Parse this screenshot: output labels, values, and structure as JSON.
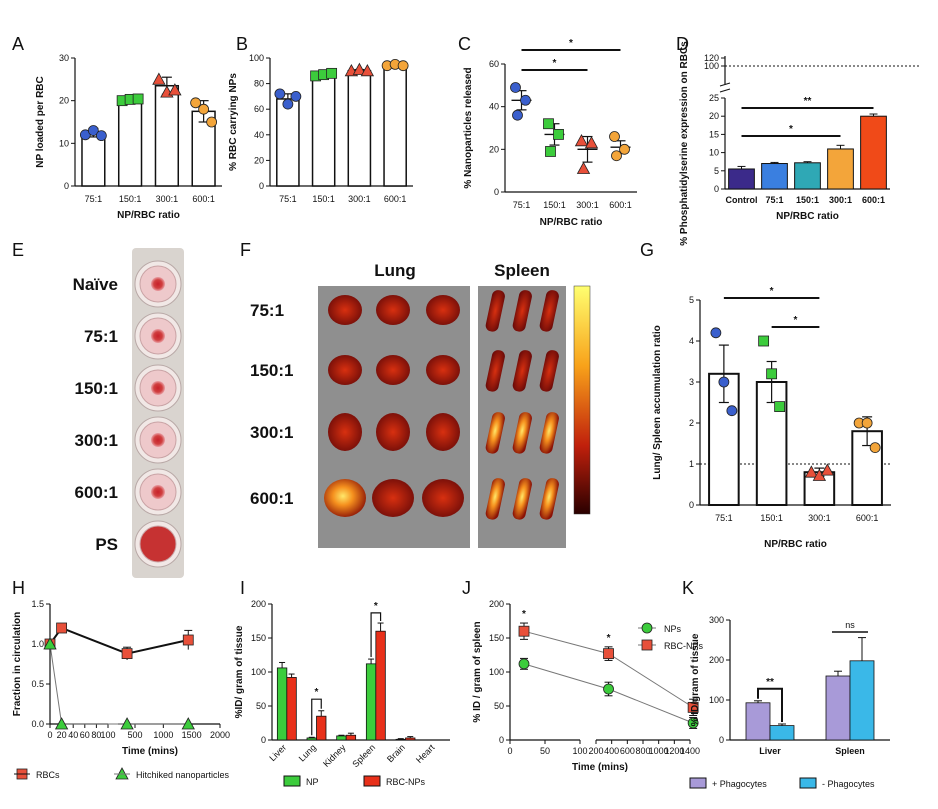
{
  "chart_data": [
    {
      "panel": "A",
      "type": "bar",
      "categories": [
        "75:1",
        "150:1",
        "300:1",
        "600:1"
      ],
      "values": [
        12.5,
        20.2,
        23.5,
        17.5
      ],
      "errors": [
        1.0,
        0.3,
        2.0,
        2.5
      ],
      "points": [
        [
          12,
          13,
          11.8
        ],
        [
          20,
          20.3,
          20.4
        ],
        [
          25,
          22,
          22.5
        ],
        [
          19.5,
          18,
          15
        ]
      ],
      "point_colors": [
        "#3a5fcd",
        "#3ccc3c",
        "#e8503a",
        "#f3a53a"
      ],
      "point_shapes": [
        "circle",
        "square",
        "triangle",
        "circle"
      ],
      "xlabel": "NP/RBC ratio",
      "ylabel": "NP loaded per RBC",
      "ylim": [
        0,
        30
      ],
      "yticks": [
        "0",
        "10",
        "20",
        "30"
      ]
    },
    {
      "panel": "B",
      "type": "bar",
      "categories": [
        "75:1",
        "150:1",
        "300:1",
        "600:1"
      ],
      "values": [
        68,
        86,
        90,
        94
      ],
      "errors": [
        4,
        1.5,
        1,
        0.8
      ],
      "points": [
        [
          72,
          64,
          70
        ],
        [
          86,
          87,
          88
        ],
        [
          90,
          91,
          90
        ],
        [
          94,
          95,
          94
        ]
      ],
      "point_colors": [
        "#3a5fcd",
        "#3ccc3c",
        "#e8503a",
        "#f3a53a"
      ],
      "point_shapes": [
        "circle",
        "square",
        "triangle",
        "circle"
      ],
      "xlabel": "",
      "ylabel": "% RBC carrying NPs",
      "ylim": [
        0,
        100
      ],
      "yticks": [
        "0",
        "20",
        "40",
        "60",
        "80",
        "100"
      ]
    },
    {
      "panel": "C",
      "type": "scatter",
      "categories": [
        "75:1",
        "150:1",
        "300:1",
        "600:1"
      ],
      "means": [
        43,
        27,
        20,
        21
      ],
      "errors": [
        4.5,
        5,
        6,
        3
      ],
      "points": [
        [
          49,
          43,
          36
        ],
        [
          32,
          27,
          19
        ],
        [
          24,
          23,
          11
        ],
        [
          26,
          20,
          17
        ]
      ],
      "point_colors": [
        "#3a5fcd",
        "#3ccc3c",
        "#e8503a",
        "#f3a53a"
      ],
      "point_shapes": [
        "circle",
        "square",
        "triangle",
        "circle"
      ],
      "xlabel": "NP/RBC ratio",
      "ylabel": "% Nanoparticles released",
      "ylim": [
        0,
        60
      ],
      "yticks": [
        "0",
        "20",
        "40",
        "60"
      ],
      "significance": [
        {
          "from": 0,
          "to": 3,
          "label": "*"
        },
        {
          "from": 0,
          "to": 2,
          "label": "*"
        }
      ]
    },
    {
      "panel": "D",
      "type": "bar",
      "categories": [
        "Control",
        "75:1",
        "150:1",
        "300:1",
        "600:1"
      ],
      "values": [
        5.5,
        7,
        7.2,
        11,
        20
      ],
      "errors": [
        0.7,
        0.3,
        0.3,
        1,
        0.6
      ],
      "bar_colors": [
        "#3b2a8a",
        "#3a7fe0",
        "#2fa8b5",
        "#f3a53a",
        "#f04a18"
      ],
      "xlabel": "NP/RBC ratio",
      "ylabel": "% Phosphatidylserine expression on RBCs",
      "ylim": [
        0,
        25
      ],
      "yticks": [
        "0",
        "5",
        "10",
        "15",
        "20",
        "25"
      ],
      "broken_axis_ticks": [
        "100",
        "120"
      ],
      "reference_line": 100,
      "significance": [
        {
          "from": 0,
          "to": 4,
          "label": "**"
        },
        {
          "from": 0,
          "to": 3,
          "label": "*"
        }
      ]
    },
    {
      "panel": "G",
      "type": "bar",
      "categories": [
        "75:1",
        "150:1",
        "300:1",
        "600:1"
      ],
      "values": [
        3.2,
        3.0,
        0.8,
        1.8
      ],
      "errors": [
        0.7,
        0.5,
        0.1,
        0.35
      ],
      "points": [
        [
          4.2,
          3.0,
          2.3
        ],
        [
          4.0,
          3.2,
          2.4
        ],
        [
          0.8,
          0.72,
          0.85
        ],
        [
          2.0,
          2.0,
          1.4
        ]
      ],
      "point_colors": [
        "#3a5fcd",
        "#3ccc3c",
        "#e8503a",
        "#f3a53a"
      ],
      "point_shapes": [
        "circle",
        "square",
        "triangle",
        "circle"
      ],
      "xlabel": "NP/RBC ratio",
      "ylabel": "Lung/ Spleen accumulation ratio",
      "ylim": [
        0,
        5
      ],
      "yticks": [
        "0",
        "1",
        "2",
        "3",
        "4",
        "5"
      ],
      "reference_line": 1,
      "significance": [
        {
          "from": 0,
          "to": 2,
          "label": "*"
        },
        {
          "from": 1,
          "to": 2,
          "label": "*"
        }
      ]
    },
    {
      "panel": "H",
      "type": "line",
      "series": [
        {
          "name": "RBCs",
          "color": "#e8503a",
          "x": [
            0,
            20,
            360,
            1440
          ],
          "y": [
            1.0,
            1.2,
            0.88,
            1.05
          ],
          "errors": [
            0.03,
            0.05,
            0.08,
            0.12
          ]
        },
        {
          "name": "Hitchiked nanoparticles",
          "color": "#3ccc3c",
          "x": [
            0,
            20,
            360,
            1440
          ],
          "y": [
            1.0,
            0.0,
            0.0,
            0.0
          ],
          "errors": [
            0,
            0,
            0,
            0
          ]
        }
      ],
      "xticks": [
        "0",
        "20",
        "40",
        "60",
        "80",
        "100",
        "500",
        "1000",
        "1500",
        "2000"
      ],
      "xlabel": "Time (mins)",
      "ylabel": "Fraction in circulation",
      "ylim": [
        0,
        1.5
      ],
      "yticks": [
        "0.0",
        "0.5",
        "1.0",
        "1.5"
      ]
    },
    {
      "panel": "I",
      "type": "bar",
      "categories": [
        "Liver",
        "Lung",
        "Kidney",
        "Spleen",
        "Brain",
        "Heart"
      ],
      "series": [
        {
          "name": "NP",
          "color": "#3ccc3c",
          "values": [
            106,
            3,
            6,
            112,
            1,
            0
          ],
          "errors": [
            8,
            1,
            1,
            7,
            1,
            0
          ]
        },
        {
          "name": "RBC-NPs",
          "color": "#e8301a",
          "values": [
            92,
            35,
            7,
            160,
            3,
            0
          ],
          "errors": [
            5,
            8,
            3,
            12,
            2,
            0
          ]
        }
      ],
      "xlabel": "",
      "ylabel": "%ID/ gram of tissue",
      "ylim": [
        0,
        200
      ],
      "yticks": [
        "0",
        "50",
        "100",
        "150",
        "200"
      ],
      "significance": [
        {
          "category": "Lung",
          "label": "*"
        },
        {
          "category": "Spleen",
          "label": "*"
        }
      ]
    },
    {
      "panel": "J",
      "type": "line",
      "series": [
        {
          "name": "NPs",
          "color": "#3ccc3c",
          "x": [
            20,
            360,
            1440
          ],
          "y": [
            112,
            75,
            25
          ],
          "errors": [
            8,
            10,
            8
          ]
        },
        {
          "name": "RBC-NPs",
          "color": "#e8503a",
          "x": [
            20,
            360,
            1440
          ],
          "y": [
            160,
            127,
            48
          ],
          "errors": [
            12,
            10,
            12
          ]
        }
      ],
      "xticks": [
        "0",
        "50",
        "100",
        "200",
        "400",
        "600",
        "800",
        "1000",
        "1200",
        "1400"
      ],
      "xlabel": "Time (mins)",
      "ylabel": "% ID / gram of spleen",
      "ylim": [
        0,
        200
      ],
      "yticks": [
        "0",
        "50",
        "100",
        "150",
        "200"
      ],
      "significance": [
        {
          "x": 20,
          "label": "*"
        },
        {
          "x": 360,
          "label": "*"
        }
      ]
    },
    {
      "panel": "K",
      "type": "bar",
      "categories": [
        "Liver",
        "Spleen"
      ],
      "series": [
        {
          "name": "+ Phagocytes",
          "color": "#a89ad8",
          "values": [
            93,
            160
          ],
          "errors": [
            5,
            12
          ]
        },
        {
          "name": "- Phagocytes",
          "color": "#3ab8e8",
          "values": [
            36,
            198
          ],
          "errors": [
            4,
            58
          ]
        }
      ],
      "xlabel": "",
      "ylabel": "% ID/gram of tissue",
      "ylim": [
        0,
        300
      ],
      "yticks": [
        "0",
        "100",
        "200",
        "300"
      ],
      "significance": [
        {
          "category": "Liver",
          "label": "**"
        },
        {
          "category": "Spleen",
          "label": "ns"
        }
      ]
    }
  ],
  "panel_E": {
    "letter": "E",
    "labels": [
      "Naïve",
      "75:1",
      "150:1",
      "300:1",
      "600:1",
      "PS"
    ]
  },
  "panel_F": {
    "letter": "F",
    "col_labels": [
      "Lung",
      "Spleen"
    ],
    "row_labels": [
      "75:1",
      "150:1",
      "300:1",
      "600:1"
    ]
  }
}
